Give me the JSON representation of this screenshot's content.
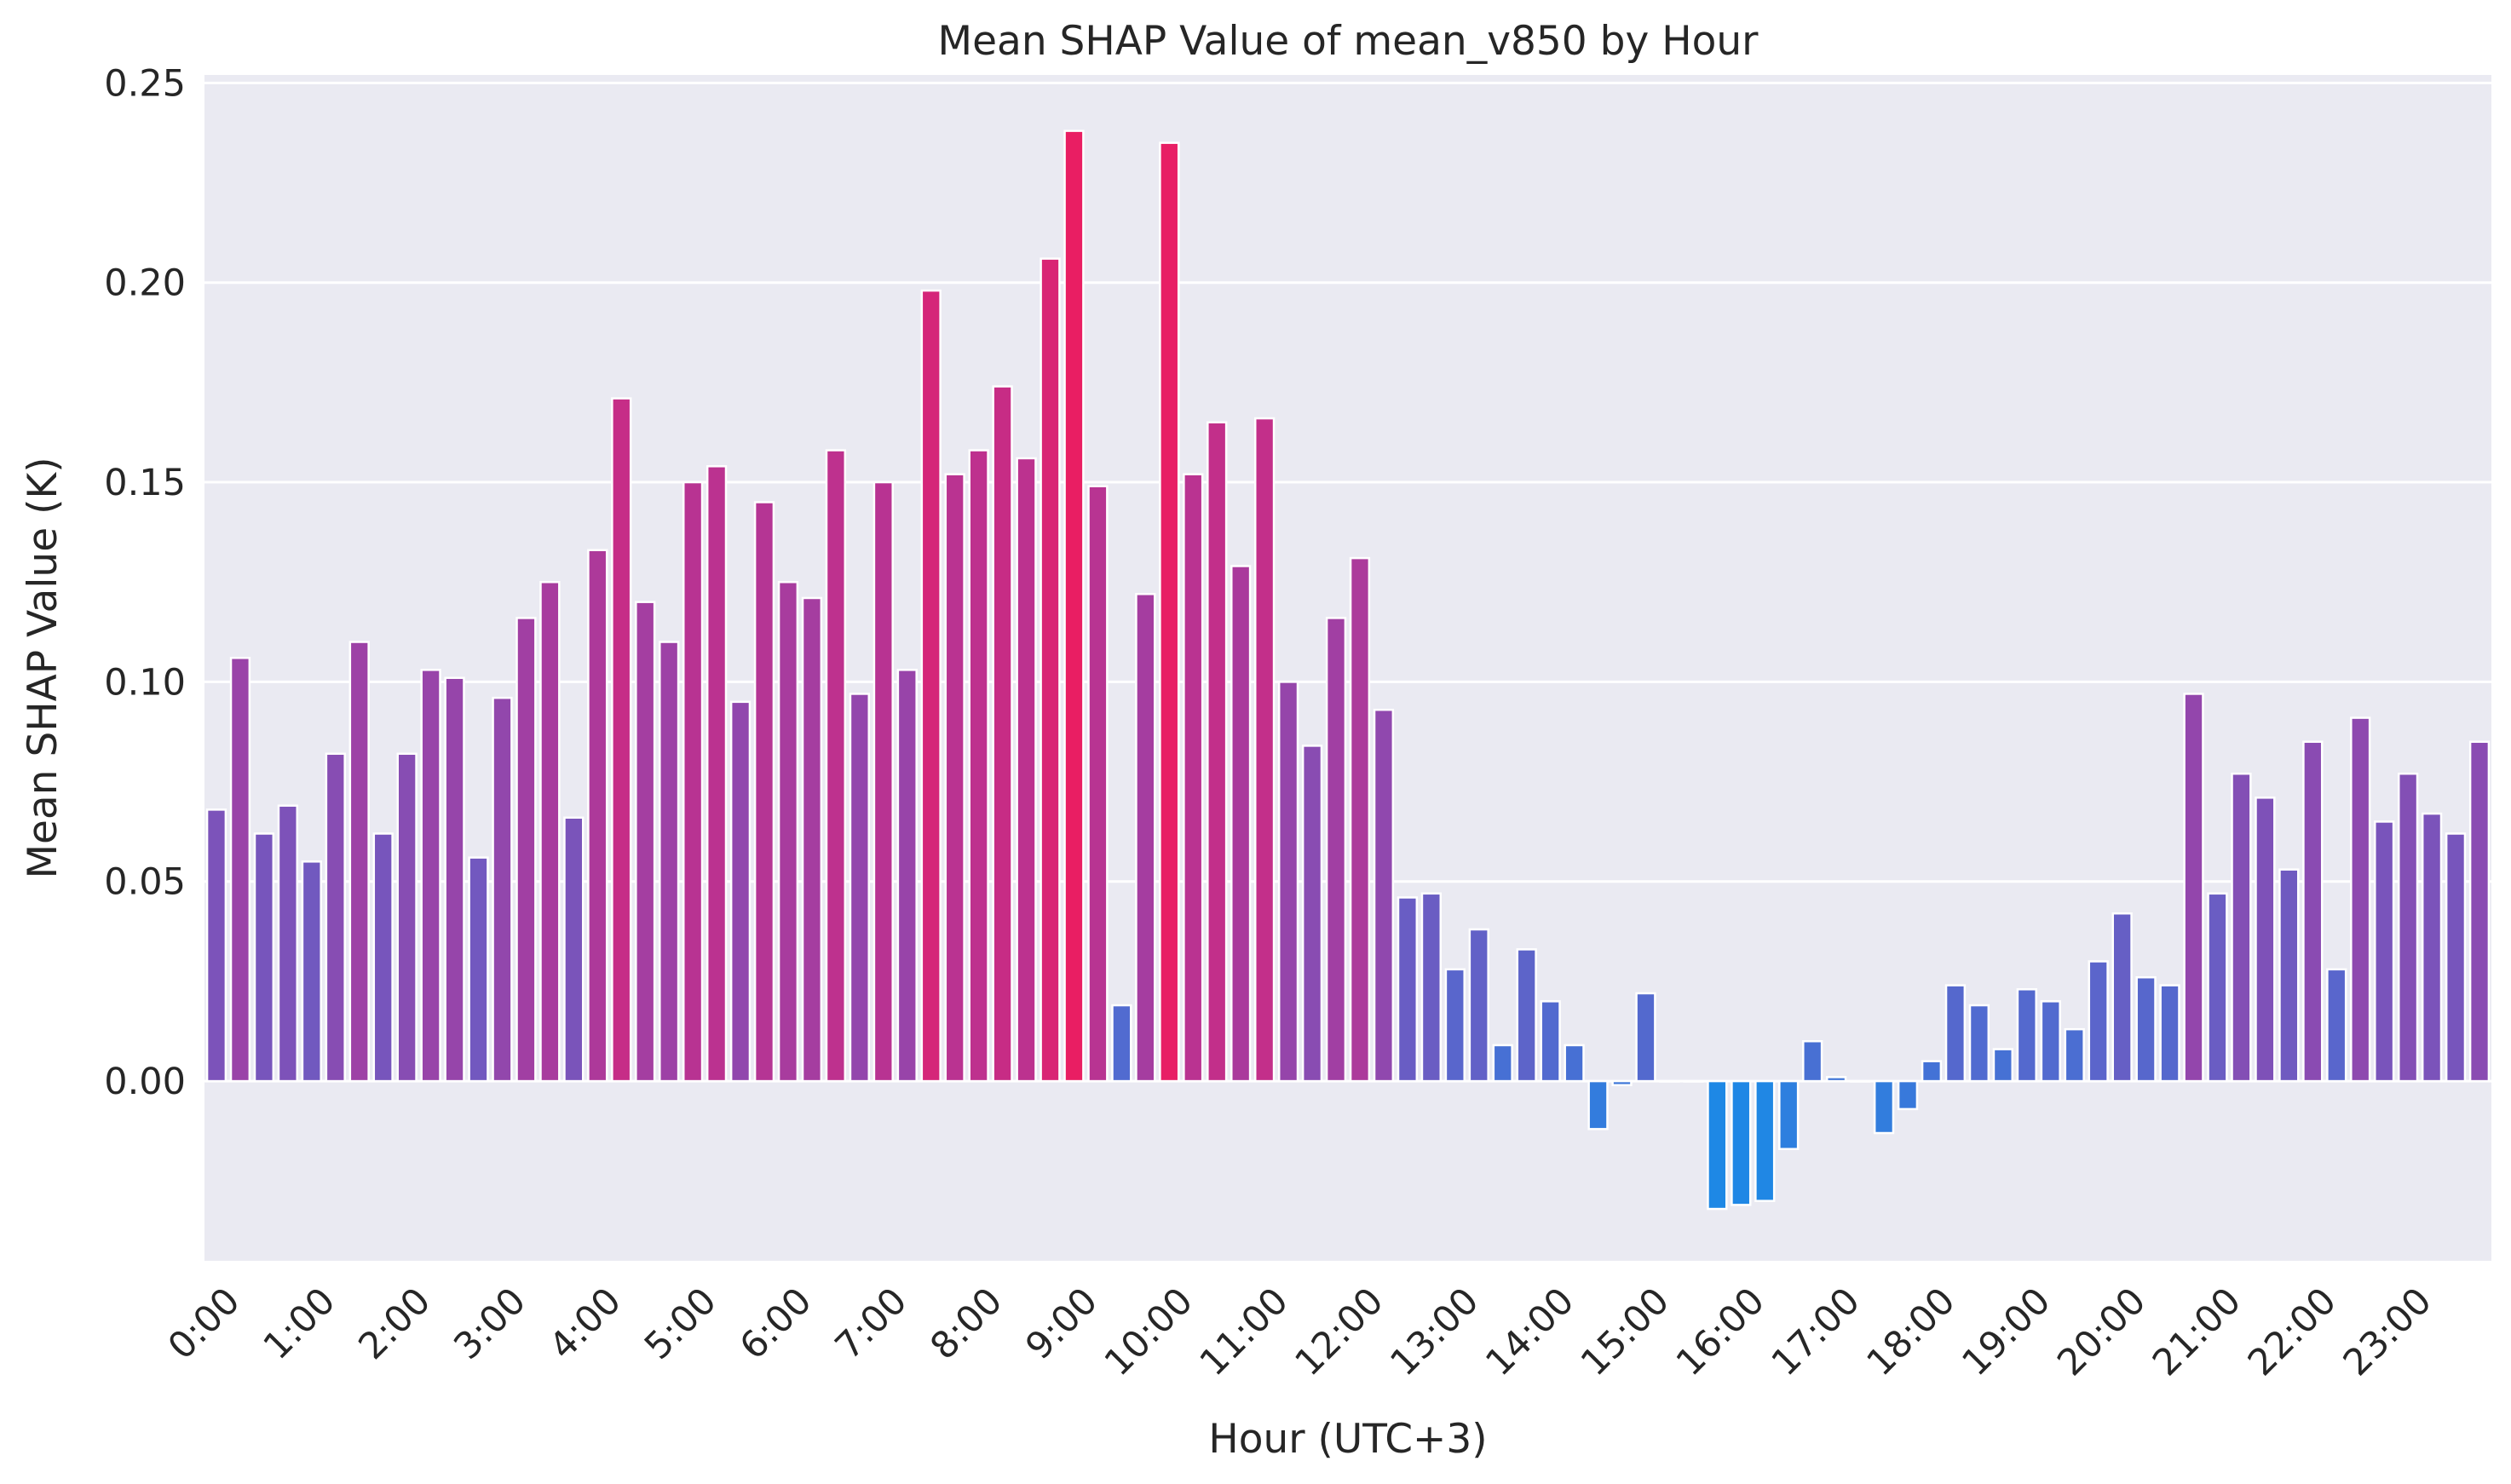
{
  "chart_data": {
    "type": "bar",
    "title": "Mean SHAP Value of mean_v850 by Hour",
    "xlabel": "Hour (UTC+3)",
    "ylabel": "Mean SHAP Value (K)",
    "ylim": [
      -0.045,
      0.252
    ],
    "yticks": [
      "0.00",
      "0.05",
      "0.10",
      "0.15",
      "0.20",
      "0.25"
    ],
    "ytick_values": [
      0,
      0.05,
      0.1,
      0.15,
      0.2,
      0.25
    ],
    "xtick_labels": [
      "0:00",
      "1:00",
      "2:00",
      "3:00",
      "4:00",
      "5:00",
      "6:00",
      "7:00",
      "8:00",
      "9:00",
      "10:00",
      "11:00",
      "12:00",
      "13:00",
      "14:00",
      "15:00",
      "16:00",
      "17:00",
      "18:00",
      "19:00",
      "20:00",
      "21:00",
      "22:00",
      "23:00"
    ],
    "bars_per_hour": 4,
    "grid": true,
    "background": "#eaeaf2",
    "grid_color": "#ffffff",
    "color_low": "#1e88e5",
    "color_high": "#e91e63",
    "values": [
      0.068,
      0.106,
      0.062,
      0.069,
      0.055,
      0.082,
      0.11,
      0.062,
      0.082,
      0.103,
      0.101,
      0.056,
      0.096,
      0.116,
      0.125,
      0.066,
      0.133,
      0.171,
      0.12,
      0.11,
      0.15,
      0.154,
      0.095,
      0.145,
      0.125,
      0.121,
      0.158,
      0.097,
      0.15,
      0.103,
      0.198,
      0.152,
      0.158,
      0.174,
      0.156,
      0.206,
      0.238,
      0.149,
      0.019,
      0.122,
      0.235,
      0.152,
      0.165,
      0.129,
      0.166,
      0.1,
      0.084,
      0.116,
      0.131,
      0.093,
      0.046,
      0.047,
      0.028,
      0.038,
      0.009,
      0.033,
      0.02,
      0.009,
      -0.012,
      -0.001,
      0.022,
      0.0,
      0.0,
      -0.032,
      -0.031,
      -0.03,
      -0.017,
      0.01,
      0.001,
      0.0,
      -0.013,
      -0.007,
      0.005,
      0.024,
      0.019,
      0.008,
      0.023,
      0.02,
      0.013,
      0.03,
      0.042,
      0.026,
      0.024,
      0.097,
      0.047,
      0.077,
      0.071,
      0.053,
      0.085,
      0.028,
      0.091,
      0.065,
      0.077,
      0.067,
      0.062,
      0.085
    ]
  }
}
